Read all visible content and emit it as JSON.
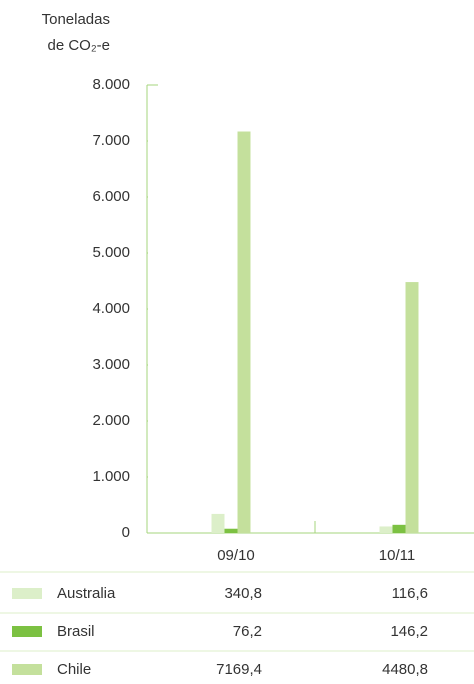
{
  "chart_data": {
    "type": "bar",
    "ylabel": [
      "Toneladas",
      "de CO₂-e"
    ],
    "categories": [
      "09/10",
      "10/11"
    ],
    "series": [
      {
        "name": "Australia",
        "color": "#dcefc9",
        "values": [
          340.8,
          116.6
        ],
        "value_labels": [
          "340,8",
          "116,6"
        ]
      },
      {
        "name": "Brasil",
        "color": "#7cc142",
        "values": [
          76.2,
          146.2
        ],
        "value_labels": [
          "76,2",
          "146,2"
        ]
      },
      {
        "name": "Chile",
        "color": "#c4e09c",
        "values": [
          7169.4,
          4480.8
        ],
        "value_labels": [
          "7169,4",
          "4480,8"
        ]
      }
    ],
    "ylim": [
      0,
      8000
    ],
    "yticks": [
      0,
      {
        "value": 1000,
        "label": "1.000"
      },
      {
        "value": 2000,
        "label": "2.000"
      },
      {
        "value": 3000,
        "label": "3.000"
      },
      {
        "value": 4000,
        "label": "4.000"
      },
      {
        "value": 5000,
        "label": "5.000"
      },
      {
        "value": 6000,
        "label": "6.000"
      },
      {
        "value": 7000,
        "label": "7.000"
      },
      {
        "value": 8000,
        "label": "8.000"
      }
    ],
    "grid": false
  }
}
